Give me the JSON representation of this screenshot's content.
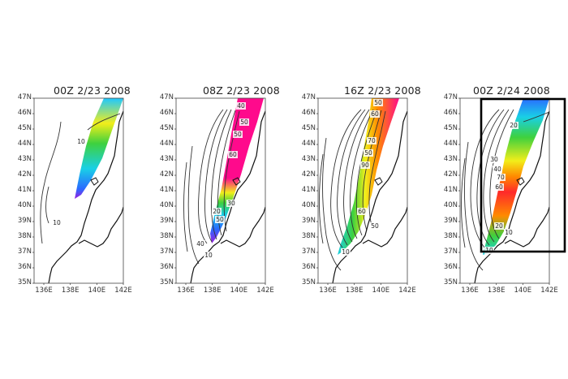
{
  "panels": [
    {
      "title": "00Z  2/23 2008",
      "contour_labels": [
        "10",
        "10"
      ]
    },
    {
      "title": "08Z  2/23 2008",
      "contour_labels": [
        "40",
        "50",
        "50",
        "60",
        "30",
        "20",
        "40",
        "50",
        "10"
      ]
    },
    {
      "title": "16Z  2/23 2008",
      "contour_labels": [
        "50",
        "60",
        "70",
        "50",
        "90",
        "60",
        "50",
        "10"
      ]
    },
    {
      "title": "00Z  2/24 2008",
      "contour_labels": [
        "20",
        "30",
        "40",
        "70",
        "60",
        "20",
        "10",
        "10"
      ]
    }
  ],
  "axes": {
    "lat_ticks": [
      "47N",
      "46N",
      "45N",
      "44N",
      "43N",
      "42N",
      "41N",
      "40N",
      "39N",
      "38N",
      "37N",
      "36N",
      "35N"
    ],
    "lon_ticks": [
      "136E",
      "138E",
      "140E",
      "142E"
    ]
  },
  "highlight": {
    "panel": 3,
    "color": "#000000"
  },
  "colors": {
    "magenta": "#ff0a8c",
    "violet": "#9a1de0",
    "blue": "#2a6bff",
    "cyan": "#19d0e6",
    "green": "#3ed13e",
    "yellow": "#f2ee1a",
    "orange": "#ff8a00",
    "red": "#ff2a2a",
    "contour": "#333333"
  }
}
